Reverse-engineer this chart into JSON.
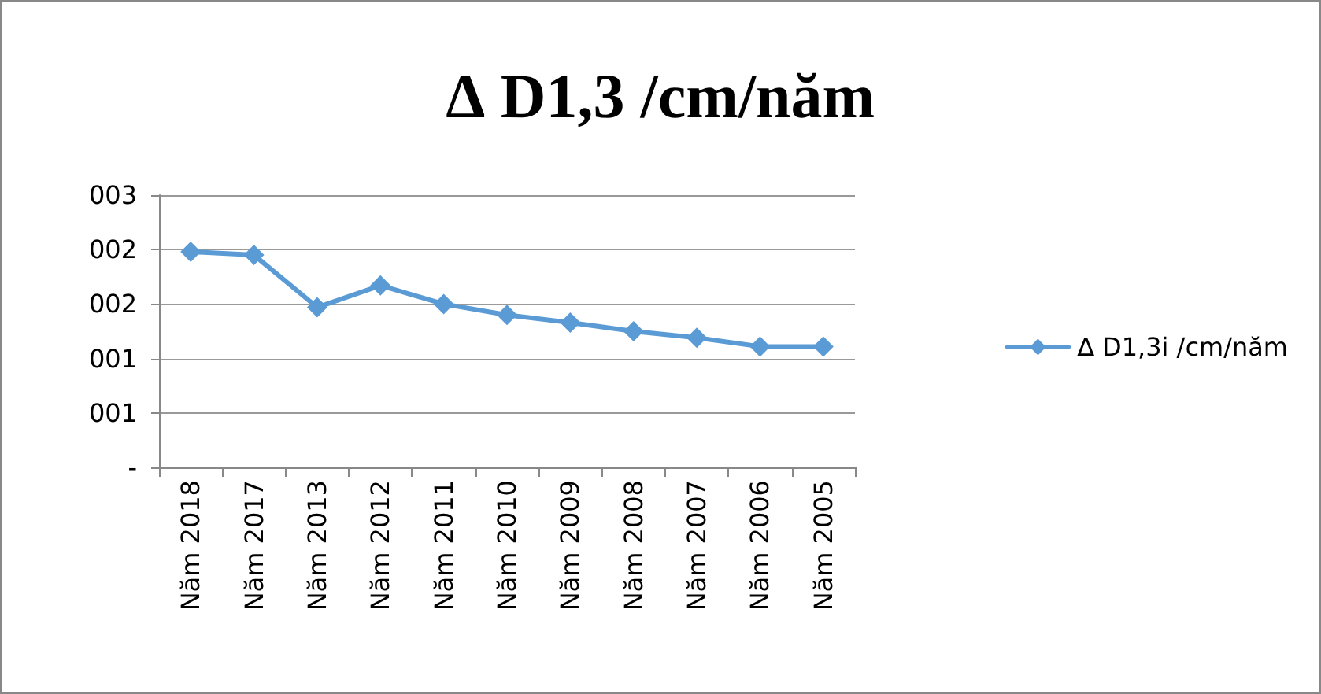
{
  "chart_data": {
    "type": "line",
    "title": "∆ D1,3 /cm/năm",
    "categories": [
      "Năm 2018",
      "Năm 2017",
      "Năm 2013",
      "Năm 2012",
      "Năm 2011",
      "Năm 2010",
      "Năm 2009",
      "Năm 2008",
      "Năm 2007",
      "Năm 2006",
      "Năm 2005"
    ],
    "series": [
      {
        "name": "∆ D1,3i /cm/năm",
        "color": "#5b9bd5",
        "values": [
          1.98,
          1.95,
          1.47,
          1.67,
          1.5,
          1.4,
          1.33,
          1.25,
          1.19,
          1.11,
          1.11
        ]
      }
    ],
    "ylim": [
      0,
      2.5
    ],
    "yticks": [
      {
        "value": 0,
        "label": "-"
      },
      {
        "value": 0.5,
        "label": "001"
      },
      {
        "value": 1,
        "label": "001"
      },
      {
        "value": 1.5,
        "label": "002"
      },
      {
        "value": 2,
        "label": "002"
      },
      {
        "value": 2.5,
        "label": "003"
      }
    ],
    "grid": "y",
    "legend": "right",
    "marker": "diamond",
    "line_style": "solid"
  }
}
